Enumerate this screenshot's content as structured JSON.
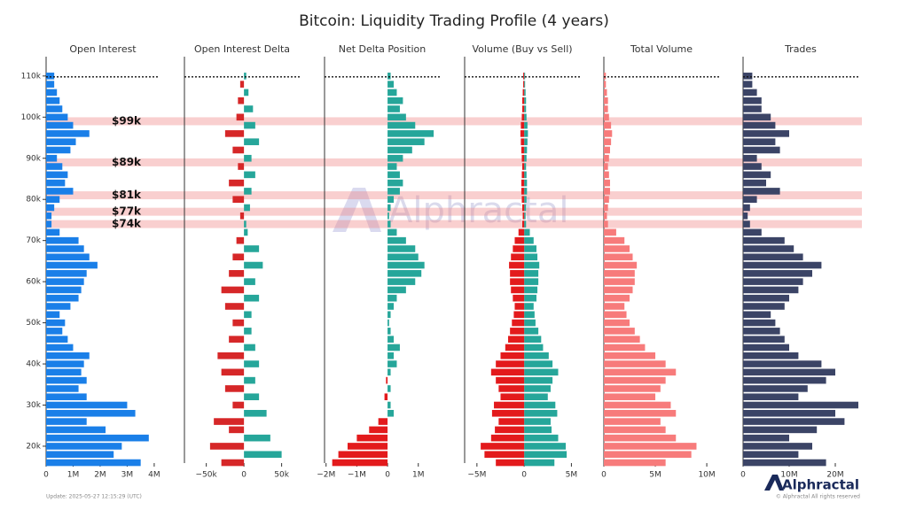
{
  "title": "Bitcoin: Liquidity Trading Profile (4 years)",
  "update": "Update: 2025-05-27 12:15:29 (UTC)",
  "watermark": "Alphractal",
  "logo": "Alphractal",
  "copyright": "© Alphractal All rights reserved",
  "bands": [
    {
      "label": "$99k",
      "value": 99000
    },
    {
      "label": "$89k",
      "value": 89000
    },
    {
      "label": "$81k",
      "value": 81000
    },
    {
      "label": "$77k",
      "value": 77000
    },
    {
      "label": "$74k",
      "value": 74000
    }
  ],
  "band_color": "rgba(240,128,128,0.38)",
  "chart_data": [
    {
      "type": "bar",
      "orientation": "horizontal",
      "title": "Open Interest",
      "y": [
        16000.0,
        18000.0,
        20000.0,
        22000.0,
        24000.0,
        26000.0,
        28000.0,
        30000.0,
        32000.0,
        34000.0,
        36000.0,
        38000.0,
        40000.0,
        42000.0,
        44000.0,
        46000.0,
        48000.0,
        50000.0,
        52000.0,
        54000.0,
        56000.0,
        58000.0,
        60000.0,
        62000.0,
        64000.0,
        66000.0,
        68000.0,
        70000.0,
        72000.0,
        74000.0,
        76000.0,
        78000.0,
        80000.0,
        82000.0,
        84000.0,
        86000.0,
        88000.0,
        90000.0,
        92000.0,
        94000.0,
        96000.0,
        98000.0,
        100000.0,
        102000.0,
        104000.0,
        106000.0,
        108000.0,
        110000.0
      ],
      "series": [
        {
          "color": "#1a7fe8",
          "values": [
            3500000.0,
            2500000.0,
            2800000.0,
            3800000.0,
            2200000.0,
            1500000.0,
            3300000.0,
            3000000.0,
            1500000.0,
            1200000.0,
            1500000.0,
            1300000.0,
            1400000.0,
            1600000.0,
            1000000.0,
            800000.0,
            600000.0,
            700000.0,
            500000.0,
            900000.0,
            1200000.0,
            1300000.0,
            1400000.0,
            1500000.0,
            1900000.0,
            1600000.0,
            1400000.0,
            1200000.0,
            500000.0,
            200000.0,
            200000.0,
            300000.0,
            500000.0,
            1000000.0,
            700000.0,
            800000.0,
            600000.0,
            400000.0,
            900000.0,
            1100000.0,
            1600000.0,
            1000000.0,
            800000.0,
            600000.0,
            500000.0,
            400000.0,
            300000.0,
            300000.0
          ]
        }
      ],
      "xlim": [
        0,
        4200000.0
      ],
      "xticks": [
        0,
        {
          "value": 1000000.0,
          "label": "1M"
        },
        {
          "value": 2000000.0,
          "label": "2M"
        },
        {
          "value": 3000000.0,
          "label": "3M"
        },
        {
          "value": 4000000.0,
          "label": "4M"
        }
      ],
      "ylim": [
        15900,
        114700
      ],
      "yticks": [
        {
          "value": 20000,
          "label": "20k"
        },
        {
          "value": 30000,
          "label": "30k"
        },
        {
          "value": 40000,
          "label": "40k"
        },
        {
          "value": 50000,
          "label": "50k"
        },
        {
          "value": 60000,
          "label": "60k"
        },
        {
          "value": 70000,
          "label": "70k"
        },
        {
          "value": 80000,
          "label": "80k"
        },
        {
          "value": 90000,
          "label": "90k"
        },
        {
          "value": 100000,
          "label": "100k"
        },
        {
          "value": 110000,
          "label": "110k"
        }
      ],
      "ref_line": 109800
    },
    {
      "type": "bar",
      "orientation": "horizontal",
      "title": "Open Interest Delta",
      "y": [
        16000.0,
        18000.0,
        20000.0,
        22000.0,
        24000.0,
        26000.0,
        28000.0,
        30000.0,
        32000.0,
        34000.0,
        36000.0,
        38000.0,
        40000.0,
        42000.0,
        44000.0,
        46000.0,
        48000.0,
        50000.0,
        52000.0,
        54000.0,
        56000.0,
        58000.0,
        60000.0,
        62000.0,
        64000.0,
        66000.0,
        68000.0,
        70000.0,
        72000.0,
        74000.0,
        76000.0,
        78000.0,
        80000.0,
        82000.0,
        84000.0,
        86000.0,
        88000.0,
        90000.0,
        92000.0,
        94000.0,
        96000.0,
        98000.0,
        100000.0,
        102000.0,
        104000.0,
        106000.0,
        108000.0,
        110000.0
      ],
      "series": [
        {
          "color_positive": "#26a69a",
          "color_negative": "#d62728",
          "values": [
            -30000.0,
            50000.0,
            -45000.0,
            35000.0,
            -20000.0,
            -40000.0,
            30000.0,
            -15000.0,
            20000.0,
            -25000.0,
            15000.0,
            -30000.0,
            20000.0,
            -35000.0,
            15000.0,
            -20000.0,
            10000.0,
            -15000.0,
            10000.0,
            -25000.0,
            20000.0,
            -30000.0,
            15000.0,
            -20000.0,
            25000.0,
            -15000.0,
            20000.0,
            -10000.0,
            5000.0,
            3000.0,
            -5000.0,
            8000.0,
            -15000.0,
            10000.0,
            -20000.0,
            15000.0,
            -8000.0,
            10000.0,
            -15000.0,
            20000.0,
            -25000.0,
            15000.0,
            -10000.0,
            12000.0,
            -8000.0,
            6000.0,
            -5000.0,
            3000.0
          ]
        }
      ],
      "xlim": [
        -79000,
        74000
      ],
      "xticks": [
        {
          "value": -50000,
          "label": "−50k"
        },
        0,
        {
          "value": 50000,
          "label": "50k"
        }
      ],
      "ylim": [
        15900,
        114700
      ],
      "ref_line": 109800
    },
    {
      "type": "bar",
      "orientation": "horizontal",
      "title": "Net Delta Position",
      "y": [
        16000.0,
        18000.0,
        20000.0,
        22000.0,
        24000.0,
        26000.0,
        28000.0,
        30000.0,
        32000.0,
        34000.0,
        36000.0,
        38000.0,
        40000.0,
        42000.0,
        44000.0,
        46000.0,
        48000.0,
        50000.0,
        52000.0,
        54000.0,
        56000.0,
        58000.0,
        60000.0,
        62000.0,
        64000.0,
        66000.0,
        68000.0,
        70000.0,
        72000.0,
        74000.0,
        76000.0,
        78000.0,
        80000.0,
        82000.0,
        84000.0,
        86000.0,
        88000.0,
        90000.0,
        92000.0,
        94000.0,
        96000.0,
        98000.0,
        100000.0,
        102000.0,
        104000.0,
        106000.0,
        108000.0,
        110000.0
      ],
      "series": [
        {
          "color_positive": "#26a69a",
          "color_negative": "#e31a1c",
          "values": [
            -1800000.0,
            -1600000.0,
            -1300000.0,
            -1000000.0,
            -600000.0,
            -300000.0,
            200000.0,
            100000.0,
            -100000.0,
            100000.0,
            -50000.0,
            100000.0,
            300000.0,
            200000.0,
            400000.0,
            200000.0,
            100000.0,
            50000.0,
            100000.0,
            200000.0,
            300000.0,
            600000.0,
            900000.0,
            1100000.0,
            1200000.0,
            1000000.0,
            900000.0,
            600000.0,
            300000.0,
            100000.0,
            50000.0,
            100000.0,
            200000.0,
            400000.0,
            500000.0,
            400000.0,
            300000.0,
            500000.0,
            800000.0,
            1200000.0,
            1500000.0,
            900000.0,
            600000.0,
            400000.0,
            500000.0,
            300000.0,
            200000.0,
            100000.0
          ]
        }
      ],
      "xlim": [
        -2050000.0,
        1700000.0
      ],
      "xticks": [
        {
          "value": -2000000.0,
          "label": "−2M"
        },
        {
          "value": -1000000.0,
          "label": "−1M"
        },
        0,
        {
          "value": 1000000.0,
          "label": "1M"
        }
      ],
      "ylim": [
        15900,
        114700
      ],
      "ref_line": 109800
    },
    {
      "type": "bar",
      "orientation": "horizontal",
      "title": "Volume (Buy vs Sell)",
      "y": [
        16000.0,
        18000.0,
        20000.0,
        22000.0,
        24000.0,
        26000.0,
        28000.0,
        30000.0,
        32000.0,
        34000.0,
        36000.0,
        38000.0,
        40000.0,
        42000.0,
        44000.0,
        46000.0,
        48000.0,
        50000.0,
        52000.0,
        54000.0,
        56000.0,
        58000.0,
        60000.0,
        62000.0,
        64000.0,
        66000.0,
        68000.0,
        70000.0,
        72000.0,
        74000.0,
        76000.0,
        78000.0,
        80000.0,
        82000.0,
        84000.0,
        86000.0,
        88000.0,
        90000.0,
        92000.0,
        94000.0,
        96000.0,
        98000.0,
        100000.0,
        102000.0,
        104000.0,
        106000.0,
        108000.0,
        110000.0
      ],
      "series": [
        {
          "color": "#26a69a",
          "values": [
            3200000.0,
            4500000.0,
            4400000.0,
            3600000.0,
            2900000.0,
            2800000.0,
            3500000.0,
            3300000.0,
            2500000.0,
            2800000.0,
            3000000.0,
            3600000.0,
            3000000.0,
            2600000.0,
            2000000.0,
            1800000.0,
            1500000.0,
            1200000.0,
            1100000.0,
            1000000.0,
            1300000.0,
            1400000.0,
            1500000.0,
            1500000.0,
            1600000.0,
            1400000.0,
            1300000.0,
            1000000.0,
            600000.0,
            200000.0,
            150000.0,
            200000.0,
            250000.0,
            300000.0,
            300000.0,
            250000.0,
            200000.0,
            250000.0,
            300000.0,
            350000.0,
            400000.0,
            350000.0,
            250000.0,
            200000.0,
            200000.0,
            150000.0,
            100000.0,
            100000.0
          ]
        },
        {
          "color": "#e31a1c",
          "values": [
            -3000000.0,
            -4200000.0,
            -4600000.0,
            -3500000.0,
            -3100000.0,
            -2700000.0,
            -3400000.0,
            -3200000.0,
            -2500000.0,
            -2700000.0,
            -3000000.0,
            -3500000.0,
            -3000000.0,
            -2500000.0,
            -2000000.0,
            -1700000.0,
            -1500000.0,
            -1300000.0,
            -1100000.0,
            -1000000.0,
            -1200000.0,
            -1400000.0,
            -1500000.0,
            -1500000.0,
            -1600000.0,
            -1400000.0,
            -1200000.0,
            -1000000.0,
            -600000.0,
            -200000.0,
            -150000.0,
            -200000.0,
            -250000.0,
            -300000.0,
            -300000.0,
            -250000.0,
            -200000.0,
            -250000.0,
            -300000.0,
            -350000.0,
            -400000.0,
            -350000.0,
            -250000.0,
            -200000.0,
            -200000.0,
            -150000.0,
            -100000.0,
            -100000.0
          ]
        }
      ],
      "xlim": [
        -6300000.0,
        5900000.0
      ],
      "xticks": [
        {
          "value": -5000000.0,
          "label": "−5M"
        },
        0,
        {
          "value": 5000000.0,
          "label": "5M"
        }
      ],
      "ylim": [
        15900,
        114700
      ],
      "ref_line": 109800
    },
    {
      "type": "bar",
      "orientation": "horizontal",
      "title": "Total Volume",
      "y": [
        16000.0,
        18000.0,
        20000.0,
        22000.0,
        24000.0,
        26000.0,
        28000.0,
        30000.0,
        32000.0,
        34000.0,
        36000.0,
        38000.0,
        40000.0,
        42000.0,
        44000.0,
        46000.0,
        48000.0,
        50000.0,
        52000.0,
        54000.0,
        56000.0,
        58000.0,
        60000.0,
        62000.0,
        64000.0,
        66000.0,
        68000.0,
        70000.0,
        72000.0,
        74000.0,
        76000.0,
        78000.0,
        80000.0,
        82000.0,
        84000.0,
        86000.0,
        88000.0,
        90000.0,
        92000.0,
        94000.0,
        96000.0,
        98000.0,
        100000.0,
        102000.0,
        104000.0,
        106000.0,
        108000.0,
        110000.0
      ],
      "series": [
        {
          "color": "#f77b7b",
          "values": [
            6000000.0,
            8500000.0,
            9000000.0,
            7000000.0,
            6000000.0,
            5500000.0,
            7000000.0,
            6500000.0,
            5000000.0,
            5500000.0,
            6000000.0,
            7000000.0,
            6000000.0,
            5000000.0,
            4000000.0,
            3500000.0,
            3000000.0,
            2500000.0,
            2200000.0,
            2000000.0,
            2500000.0,
            2800000.0,
            3000000.0,
            3000000.0,
            3200000.0,
            2800000.0,
            2500000.0,
            2000000.0,
            1200000.0,
            400000.0,
            300000.0,
            400000.0,
            500000.0,
            600000.0,
            600000.0,
            500000.0,
            400000.0,
            500000.0,
            600000.0,
            700000.0,
            800000.0,
            700000.0,
            500000.0,
            400000.0,
            400000.0,
            300000.0,
            200000.0,
            200000.0
          ]
        }
      ],
      "xlim": [
        0,
        11200000.0
      ],
      "xticks": [
        0,
        {
          "value": 5000000.0,
          "label": "5M"
        },
        {
          "value": 10000000.0,
          "label": "10M"
        }
      ],
      "ylim": [
        15900,
        114700
      ],
      "ref_line": 109800
    },
    {
      "type": "bar",
      "orientation": "horizontal",
      "title": "Trades",
      "y": [
        16000.0,
        18000.0,
        20000.0,
        22000.0,
        24000.0,
        26000.0,
        28000.0,
        30000.0,
        32000.0,
        34000.0,
        36000.0,
        38000.0,
        40000.0,
        42000.0,
        44000.0,
        46000.0,
        48000.0,
        50000.0,
        52000.0,
        54000.0,
        56000.0,
        58000.0,
        60000.0,
        62000.0,
        64000.0,
        66000.0,
        68000.0,
        70000.0,
        72000.0,
        74000.0,
        76000.0,
        78000.0,
        80000.0,
        82000.0,
        84000.0,
        86000.0,
        88000.0,
        90000.0,
        92000.0,
        94000.0,
        96000.0,
        98000.0,
        100000.0,
        102000.0,
        104000.0,
        106000.0,
        108000.0,
        110000.0
      ],
      "series": [
        {
          "color": "#3b4466",
          "values": [
            18000000.0,
            12000000.0,
            15000000.0,
            10000000.0,
            16000000.0,
            22000000.0,
            20000000.0,
            25000000.0,
            12000000.0,
            14000000.0,
            18000000.0,
            20000000.0,
            17000000.0,
            12000000.0,
            10000000.0,
            9000000.0,
            8000000.0,
            7000000.0,
            6000000.0,
            9000000.0,
            10000000.0,
            12000000.0,
            13000000.0,
            15000000.0,
            17000000.0,
            13000000.0,
            11000000.0,
            9000000.0,
            4000000.0,
            1500000.0,
            1000000.0,
            1500000.0,
            3000000.0,
            8000000.0,
            5000000.0,
            6000000.0,
            4000000.0,
            3000000.0,
            8000000.0,
            7000000.0,
            10000000.0,
            7000000.0,
            6000000.0,
            4000000.0,
            4000000.0,
            3000000.0,
            2000000.0,
            2000000.0
          ]
        }
      ],
      "xlim": [
        0,
        25000000.0
      ],
      "xticks": [
        0,
        {
          "value": 10000000.0,
          "label": "10M"
        },
        {
          "value": 20000000.0,
          "label": "20M"
        }
      ],
      "ylim": [
        15900,
        114700
      ],
      "ref_line": 109800
    }
  ]
}
